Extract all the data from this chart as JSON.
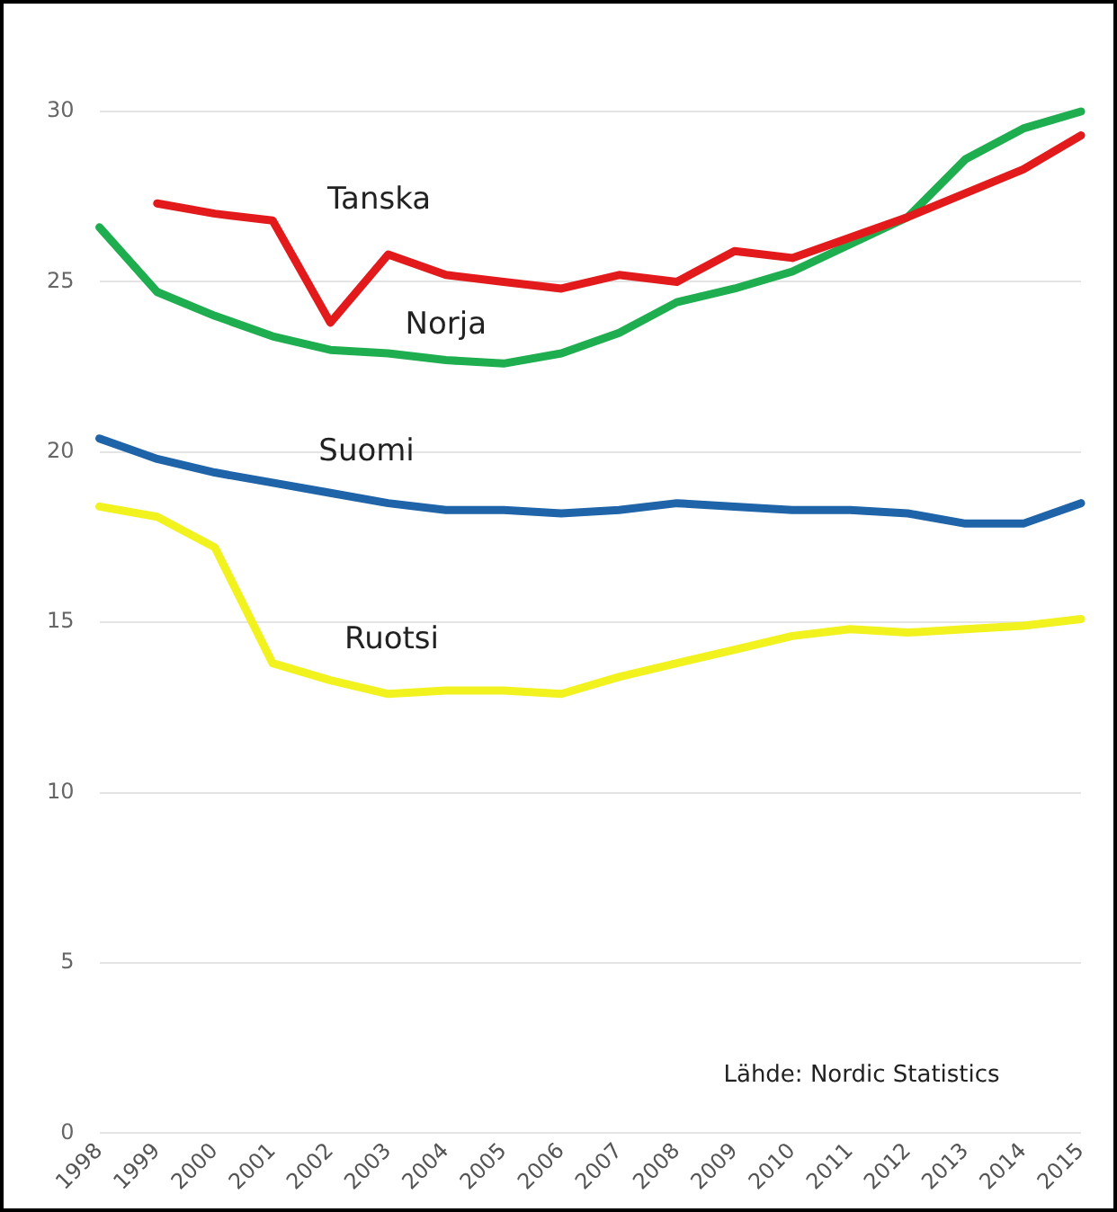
{
  "chart_data": {
    "type": "line",
    "categories": [
      "1998",
      "1999",
      "2000",
      "2001",
      "2002",
      "2003",
      "2004",
      "2005",
      "2006",
      "2007",
      "2008",
      "2009",
      "2010",
      "2011",
      "2012",
      "2013",
      "2014",
      "2015"
    ],
    "series": [
      {
        "name": "Tanska",
        "color": "#e31a1c",
        "values": [
          null,
          27.3,
          27.0,
          26.8,
          23.8,
          25.8,
          25.2,
          25.0,
          24.8,
          25.2,
          25.0,
          25.9,
          25.7,
          26.3,
          26.9,
          27.6,
          28.3,
          29.3
        ]
      },
      {
        "name": "Norja",
        "color": "#1fae4f",
        "values": [
          26.6,
          24.7,
          24.0,
          23.4,
          23.0,
          22.9,
          22.7,
          22.6,
          22.9,
          23.5,
          24.4,
          24.8,
          25.3,
          26.1,
          26.9,
          28.6,
          29.5,
          30.0
        ]
      },
      {
        "name": "Suomi",
        "color": "#1f63a8",
        "values": [
          20.4,
          19.8,
          19.4,
          19.1,
          18.8,
          18.5,
          18.3,
          18.3,
          18.2,
          18.3,
          18.5,
          18.4,
          18.3,
          18.3,
          18.2,
          17.9,
          17.9,
          18.5
        ]
      },
      {
        "name": "Ruotsi",
        "color": "#f2f21e",
        "values": [
          18.4,
          18.1,
          17.2,
          13.8,
          13.3,
          12.9,
          13.0,
          13.0,
          12.9,
          13.4,
          13.8,
          14.2,
          14.6,
          14.8,
          14.7,
          14.8,
          14.9,
          15.1
        ]
      }
    ],
    "ylim": [
      0,
      30
    ],
    "yticks": [
      0,
      5,
      10,
      15,
      20,
      25,
      30
    ],
    "grid": "y",
    "legend": false,
    "marker": "none",
    "line_style": "solid",
    "annotations": [
      "Lähde: Nordic Statistics"
    ]
  }
}
